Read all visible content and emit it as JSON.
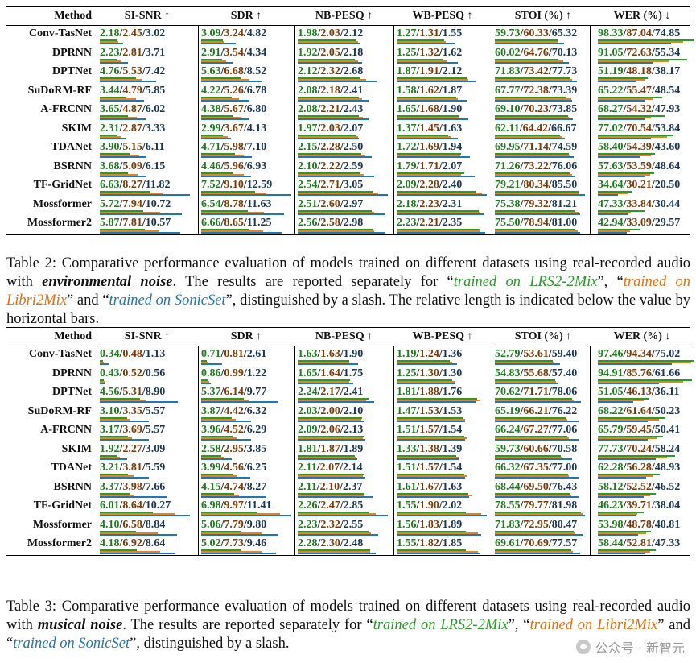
{
  "headers": [
    "Method",
    "SI-SNR ↑",
    "SDR ↑",
    "NB-PESQ ↑",
    "WB-PESQ ↑",
    "STOI (%) ↑",
    "WER (%) ↓"
  ],
  "tables": [
    {
      "rows": [
        {
          "method": "Conv-TasNet",
          "cells": [
            [
              "2.18",
              "2.45",
              "3.02"
            ],
            [
              "3.09",
              "3.24",
              "4.82"
            ],
            [
              "1.98",
              "2.03",
              "2.12"
            ],
            [
              "1.27",
              "1.31",
              "1.55"
            ],
            [
              "59.73",
              "60.33",
              "65.32"
            ],
            [
              "98.33",
              "87.04",
              "74.85"
            ]
          ]
        },
        {
          "method": "DPRNN",
          "cells": [
            [
              "2.23",
              "2.81",
              "3.71"
            ],
            [
              "2.91",
              "3.54",
              "4.34"
            ],
            [
              "1.92",
              "2.05",
              "2.18"
            ],
            [
              "1.25",
              "1.32",
              "1.62"
            ],
            [
              "60.02",
              "64.76",
              "70.13"
            ],
            [
              "91.05",
              "72.63",
              "55.34"
            ]
          ]
        },
        {
          "method": "DPTNet",
          "cells": [
            [
              "4.76",
              "5.53",
              "7.42"
            ],
            [
              "5.63",
              "6.68",
              "8.52"
            ],
            [
              "2.12",
              "2.32",
              "2.68"
            ],
            [
              "1.87",
              "1.91",
              "2.12"
            ],
            [
              "71.83",
              "73.42",
              "77.73"
            ],
            [
              "51.19",
              "48.18",
              "38.17"
            ]
          ]
        },
        {
          "method": "SuDoRM-RF",
          "cells": [
            [
              "3.44",
              "4.79",
              "5.85"
            ],
            [
              "4.22",
              "5.26",
              "6.78"
            ],
            [
              "2.08",
              "2.18",
              "2.41"
            ],
            [
              "1.58",
              "1.62",
              "1.87"
            ],
            [
              "67.77",
              "72.38",
              "73.39"
            ],
            [
              "65.22",
              "55.47",
              "48.54"
            ]
          ]
        },
        {
          "method": "A-FRCNN",
          "cells": [
            [
              "3.65",
              "4.87",
              "6.02"
            ],
            [
              "4.38",
              "5.67",
              "6.80"
            ],
            [
              "2.08",
              "2.21",
              "2.43"
            ],
            [
              "1.65",
              "1.68",
              "1.90"
            ],
            [
              "69.10",
              "70.23",
              "73.85"
            ],
            [
              "68.27",
              "54.32",
              "47.93"
            ]
          ]
        },
        {
          "method": "SKIM",
          "cells": [
            [
              "2.31",
              "2.87",
              "3.33"
            ],
            [
              "2.99",
              "3.67",
              "4.13"
            ],
            [
              "1.97",
              "2.03",
              "2.07"
            ],
            [
              "1.37",
              "1.45",
              "1.63"
            ],
            [
              "62.11",
              "64.42",
              "66.67"
            ],
            [
              "77.02",
              "70.54",
              "53.84"
            ]
          ]
        },
        {
          "method": "TDANet",
          "cells": [
            [
              "3.90",
              "5.15",
              "6.11"
            ],
            [
              "4.71",
              "5.98",
              "7.10"
            ],
            [
              "2.15",
              "2.28",
              "2.50"
            ],
            [
              "1.72",
              "1.69",
              "1.94"
            ],
            [
              "69.95",
              "71.14",
              "74.59"
            ],
            [
              "58.40",
              "54.39",
              "43.60"
            ]
          ]
        },
        {
          "method": "BSRNN",
          "cells": [
            [
              "3.68",
              "5.09",
              "6.15"
            ],
            [
              "4.46",
              "5.96",
              "6.93"
            ],
            [
              "2.10",
              "2.22",
              "2.59"
            ],
            [
              "1.79",
              "1.71",
              "2.07"
            ],
            [
              "71.26",
              "73.22",
              "76.06"
            ],
            [
              "57.63",
              "53.59",
              "48.64"
            ]
          ]
        },
        {
          "method": "TF-GridNet",
          "cells": [
            [
              "6.63",
              "8.27",
              "11.82"
            ],
            [
              "7.52",
              "9.10",
              "12.59"
            ],
            [
              "2.54",
              "2.71",
              "3.05"
            ],
            [
              "2.09",
              "2.28",
              "2.40"
            ],
            [
              "79.21",
              "80.34",
              "85.50"
            ],
            [
              "34.64",
              "30.21",
              "20.50"
            ]
          ]
        },
        {
          "method": "Mossformer",
          "cells": [
            [
              "5.72",
              "7.94",
              "10.72"
            ],
            [
              "6.54",
              "8.78",
              "11.63"
            ],
            [
              "2.51",
              "2.60",
              "2.97"
            ],
            [
              "2.18",
              "2.23",
              "2.31"
            ],
            [
              "75.38",
              "79.32",
              "81.21"
            ],
            [
              "47.33",
              "33.84",
              "30.44"
            ]
          ]
        },
        {
          "method": "Mossformer2",
          "cells": [
            [
              "5.87",
              "7.81",
              "10.57"
            ],
            [
              "6.66",
              "8.65",
              "11.25"
            ],
            [
              "2.56",
              "2.58",
              "2.98"
            ],
            [
              "2.23",
              "2.21",
              "2.35"
            ],
            [
              "75.50",
              "78.94",
              "81.00"
            ],
            [
              "42.94",
              "33.09",
              "29.57"
            ]
          ]
        }
      ],
      "caption": {
        "label": "Table 2:",
        "text1": " Comparative performance evaluation of models trained on different datasets using real-recorded audio with ",
        "emph": "environmental noise",
        "text2": ". The results are reported separately for “",
        "g": "trained on LRS2-2Mix",
        "text3": "”, “",
        "o": "trained on Libri2Mix",
        "text4": "” and “",
        "b": "trained on SonicSet",
        "text5": "”, distinguished by a slash.  The relative length is indicated below the value by horizontal bars."
      }
    },
    {
      "rows": [
        {
          "method": "Conv-TasNet",
          "cells": [
            [
              "0.34",
              "0.48",
              "1.13"
            ],
            [
              "0.71",
              "0.81",
              "2.61"
            ],
            [
              "1.63",
              "1.63",
              "1.90"
            ],
            [
              "1.19",
              "1.24",
              "1.36"
            ],
            [
              "52.79",
              "53.61",
              "59.40"
            ],
            [
              "97.46",
              "94.34",
              "75.02"
            ]
          ]
        },
        {
          "method": "DPRNN",
          "cells": [
            [
              "0.43",
              "0.52",
              "0.56"
            ],
            [
              "0.86",
              "0.99",
              "1.22"
            ],
            [
              "1.65",
              "1.64",
              "1.75"
            ],
            [
              "1.25",
              "1.30",
              "1.30"
            ],
            [
              "54.83",
              "55.68",
              "57.40"
            ],
            [
              "94.91",
              "85.76",
              "61.66"
            ]
          ]
        },
        {
          "method": "DPTNet",
          "cells": [
            [
              "4.56",
              "5.31",
              "8.90"
            ],
            [
              "5.37",
              "6.14",
              "9.77"
            ],
            [
              "2.24",
              "2.17",
              "2.41"
            ],
            [
              "1.81",
              "1.88",
              "1.76"
            ],
            [
              "70.62",
              "71.71",
              "78.06"
            ],
            [
              "51.05",
              "46.13",
              "36.11"
            ]
          ]
        },
        {
          "method": "SuDoRM-RF",
          "cells": [
            [
              "3.10",
              "3.35",
              "5.57"
            ],
            [
              "3.87",
              "4.42",
              "6.32"
            ],
            [
              "2.03",
              "2.00",
              "2.10"
            ],
            [
              "1.47",
              "1.53",
              "1.53"
            ],
            [
              "65.19",
              "66.21",
              "76.22"
            ],
            [
              "68.22",
              "61.64",
              "50.23"
            ]
          ]
        },
        {
          "method": "A-FRCNN",
          "cells": [
            [
              "3.17",
              "3.69",
              "5.57"
            ],
            [
              "3.96",
              "4.52",
              "6.29"
            ],
            [
              "2.09",
              "2.06",
              "2.13"
            ],
            [
              "1.51",
              "1.57",
              "1.54"
            ],
            [
              "66.24",
              "67.27",
              "77.06"
            ],
            [
              "65.79",
              "59.45",
              "50.41"
            ]
          ]
        },
        {
          "method": "SKIM",
          "cells": [
            [
              "1.92",
              "2.27",
              "3.09"
            ],
            [
              "2.58",
              "2.95",
              "3.85"
            ],
            [
              "1.81",
              "1.87",
              "1.89"
            ],
            [
              "1.33",
              "1.38",
              "1.39"
            ],
            [
              "59.73",
              "60.66",
              "70.58"
            ],
            [
              "77.73",
              "70.24",
              "58.24"
            ]
          ]
        },
        {
          "method": "TDANet",
          "cells": [
            [
              "3.21",
              "3.81",
              "5.59"
            ],
            [
              "3.99",
              "4.56",
              "6.25"
            ],
            [
              "2.11",
              "2.07",
              "2.14"
            ],
            [
              "1.51",
              "1.57",
              "1.54"
            ],
            [
              "66.32",
              "67.35",
              "77.00"
            ],
            [
              "62.28",
              "56.28",
              "48.93"
            ]
          ]
        },
        {
          "method": "BSRNN",
          "cells": [
            [
              "3.37",
              "3.98",
              "7.66"
            ],
            [
              "4.15",
              "4.74",
              "8.27"
            ],
            [
              "2.11",
              "2.10",
              "2.37"
            ],
            [
              "1.61",
              "1.67",
              "1.63"
            ],
            [
              "68.44",
              "69.50",
              "76.43"
            ],
            [
              "58.12",
              "52.52",
              "46.52"
            ]
          ]
        },
        {
          "method": "TF-GridNet",
          "cells": [
            [
              "6.01",
              "8.64",
              "10.27"
            ],
            [
              "6.98",
              "9.97",
              "11.41"
            ],
            [
              "2.26",
              "2.47",
              "2.85"
            ],
            [
              "1.55",
              "1.90",
              "2.02"
            ],
            [
              "78.55",
              "79.77",
              "81.98"
            ],
            [
              "46.23",
              "39.71",
              "38.04"
            ]
          ]
        },
        {
          "method": "Mossformer",
          "cells": [
            [
              "4.10",
              "6.58",
              "8.84"
            ],
            [
              "5.06",
              "7.79",
              "9.80"
            ],
            [
              "2.23",
              "2.32",
              "2.55"
            ],
            [
              "1.56",
              "1.83",
              "1.89"
            ],
            [
              "71.83",
              "72.95",
              "80.47"
            ],
            [
              "53.98",
              "48.78",
              "40.81"
            ]
          ]
        },
        {
          "method": "Mossformer2",
          "cells": [
            [
              "4.18",
              "6.92",
              "8.64"
            ],
            [
              "5.02",
              "7.73",
              "9.46"
            ],
            [
              "2.28",
              "2.30",
              "2.48"
            ],
            [
              "1.55",
              "1.82",
              "1.85"
            ],
            [
              "69.61",
              "70.69",
              "77.57"
            ],
            [
              "58.44",
              "52.81",
              "47.33"
            ]
          ]
        }
      ],
      "caption": {
        "label": "Table 3:",
        "text1": " Comparative performance evaluation of models trained on different datasets using real-recorded audio with ",
        "emph": "musical noise",
        "text2": ". The results are reported separately for “",
        "g": "trained on LRS2-2Mix",
        "text3": "”, “",
        "o": "trained on Libri2Mix",
        "text4": "” and “",
        "b": "trained on SonicSet",
        "text5": "”, distinguished by a slash."
      }
    }
  ],
  "watermark": "公众号 · 新智元",
  "colors": {
    "series1": "#2a9a2a",
    "series2": "#e8821e",
    "series3": "#1f77b4"
  }
}
